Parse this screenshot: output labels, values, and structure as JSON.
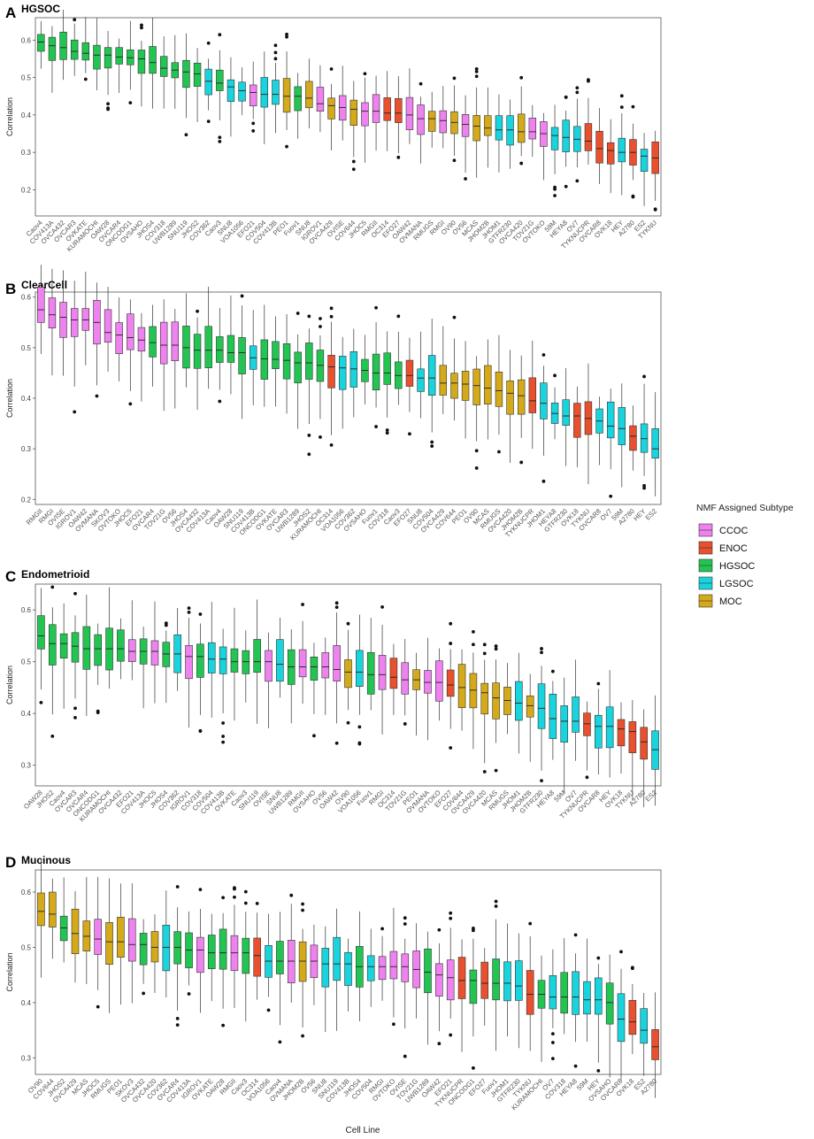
{
  "figure": {
    "x_axis_title": "Cell Line",
    "legend": {
      "title": "NMF Assigned Subtype",
      "items": [
        {
          "label": "CCOC",
          "color": "#EE82EE"
        },
        {
          "label": "ENOC",
          "color": "#E8502E"
        },
        {
          "label": "HGSOC",
          "color": "#23C552"
        },
        {
          "label": "LGSOC",
          "color": "#19D3DD"
        },
        {
          "label": "MOC",
          "color": "#D4AA1A"
        }
      ]
    }
  },
  "chart_data": [
    {
      "type": "boxplot",
      "panel_letter": "A",
      "title": "HGSOC",
      "ylabel": "Correlation",
      "ylim": [
        0.13,
        0.66
      ],
      "yticks": [
        0.2,
        0.3,
        0.4,
        0.5,
        0.6
      ],
      "categories": [
        "Caov4",
        "COV413A",
        "OVCA432",
        "OVCAR3",
        "OVKATE",
        "KURAMOCHI",
        "OAW28",
        "OVCAR4",
        "ONCODG1",
        "OVSAHO",
        "JHOS4",
        "COV318",
        "UWB1289",
        "SNU119",
        "JHOS2",
        "COV362",
        "Caov3",
        "SNU8",
        "VOA1056",
        "EFO21",
        "COV504",
        "COV413B",
        "PEO1",
        "Fuov1",
        "SNU8",
        "IGROV1",
        "OVCA429",
        "OVISE",
        "COV644",
        "JHOC5",
        "RMGII",
        "OC314",
        "EFO27",
        "OAW42",
        "OVMANA",
        "RMUGS",
        "RMGI",
        "OV90",
        "OV56",
        "MCAS",
        "JHOM2B",
        "JHOM1",
        "GTFR230",
        "OVCA420",
        "TOV21G",
        "OVTOKO",
        "59M",
        "HEYA8",
        "OV7",
        "TYKNUCPR",
        "OVCAR8",
        "OVK18",
        "HEY",
        "A2780",
        "ES2",
        "TYKNU"
      ],
      "subtypes": [
        "HGSOC",
        "HGSOC",
        "HGSOC",
        "HGSOC",
        "HGSOC",
        "HGSOC",
        "HGSOC",
        "HGSOC",
        "HGSOC",
        "HGSOC",
        "HGSOC",
        "HGSOC",
        "HGSOC",
        "HGSOC",
        "HGSOC",
        "LGSOC",
        "HGSOC",
        "LGSOC",
        "LGSOC",
        "CCOC",
        "LGSOC",
        "LGSOC",
        "MOC",
        "HGSOC",
        "MOC",
        "CCOC",
        "MOC",
        "CCOC",
        "MOC",
        "CCOC",
        "CCOC",
        "ENOC",
        "ENOC",
        "CCOC",
        "CCOC",
        "MOC",
        "CCOC",
        "MOC",
        "CCOC",
        "MOC",
        "MOC",
        "LGSOC",
        "LGSOC",
        "MOC",
        "CCOC",
        "CCOC",
        "LGSOC",
        "LGSOC",
        "LGSOC",
        "ENOC",
        "ENOC",
        "ENOC",
        "LGSOC",
        "ENOC",
        "LGSOC",
        "ENOC"
      ],
      "medians": [
        0.595,
        0.585,
        0.58,
        0.57,
        0.565,
        0.56,
        0.56,
        0.555,
        0.553,
        0.55,
        0.54,
        0.525,
        0.52,
        0.515,
        0.51,
        0.49,
        0.485,
        0.475,
        0.465,
        0.46,
        0.455,
        0.455,
        0.45,
        0.45,
        0.445,
        0.43,
        0.425,
        0.42,
        0.415,
        0.41,
        0.41,
        0.405,
        0.405,
        0.4,
        0.39,
        0.39,
        0.385,
        0.38,
        0.375,
        0.37,
        0.365,
        0.36,
        0.36,
        0.355,
        0.355,
        0.35,
        0.345,
        0.34,
        0.335,
        0.33,
        0.31,
        0.305,
        0.3,
        0.3,
        0.29,
        0.285
      ]
    },
    {
      "type": "boxplot",
      "panel_letter": "B",
      "title": "ClearCell",
      "ylabel": "Correlation",
      "ylim": [
        0.19,
        0.61
      ],
      "yticks": [
        0.2,
        0.3,
        0.4,
        0.5,
        0.6
      ],
      "categories": [
        "RMGII",
        "RMGI",
        "OVISE",
        "IGROV1",
        "OAW42",
        "OVMANA",
        "SKOV3",
        "OVTOKO",
        "JHOC5",
        "EFO21",
        "OVCAR4",
        "TOV21G",
        "OV56",
        "JHOS4",
        "OVCA432",
        "COV413A",
        "Caov4",
        "OAW28",
        "SNU119",
        "COV413B",
        "ONCODG1",
        "OVKATE",
        "OVCAR3",
        "UWB1289",
        "JHOS2",
        "KURAMOCHI",
        "OC314",
        "VOA1056",
        "COV362",
        "OVSAHO",
        "Fuov1",
        "COV318",
        "Caov3",
        "EFO27",
        "SNU8",
        "COV504",
        "OVCA429",
        "COV644",
        "PEO1",
        "OV90",
        "MCAS",
        "RMUGS",
        "OVCA420",
        "JHOM2B",
        "TYKNUCPR",
        "JHOM1",
        "HEYA8",
        "GTFR230",
        "OVK18",
        "TYKNU",
        "OVCAR8",
        "OV7",
        "59M",
        "A2780",
        "HEY",
        "ES2"
      ],
      "subtypes": [
        "CCOC",
        "CCOC",
        "CCOC",
        "CCOC",
        "CCOC",
        "CCOC",
        "CCOC",
        "CCOC",
        "CCOC",
        "CCOC",
        "HGSOC",
        "CCOC",
        "CCOC",
        "HGSOC",
        "HGSOC",
        "HGSOC",
        "HGSOC",
        "HGSOC",
        "HGSOC",
        "LGSOC",
        "HGSOC",
        "HGSOC",
        "HGSOC",
        "HGSOC",
        "HGSOC",
        "HGSOC",
        "ENOC",
        "LGSOC",
        "LGSOC",
        "HGSOC",
        "HGSOC",
        "HGSOC",
        "HGSOC",
        "ENOC",
        "LGSOC",
        "LGSOC",
        "MOC",
        "MOC",
        "MOC",
        "MOC",
        "MOC",
        "MOC",
        "MOC",
        "MOC",
        "ENOC",
        "LGSOC",
        "LGSOC",
        "LGSOC",
        "ENOC",
        "ENOC",
        "LGSOC",
        "LGSOC",
        "LGSOC",
        "ENOC",
        "LGSOC",
        "LGSOC"
      ],
      "medians": [
        0.575,
        0.565,
        0.56,
        0.555,
        0.555,
        0.55,
        0.53,
        0.525,
        0.52,
        0.515,
        0.51,
        0.505,
        0.505,
        0.5,
        0.495,
        0.495,
        0.495,
        0.49,
        0.49,
        0.48,
        0.478,
        0.477,
        0.475,
        0.47,
        0.47,
        0.465,
        0.462,
        0.46,
        0.458,
        0.455,
        0.45,
        0.45,
        0.445,
        0.445,
        0.44,
        0.44,
        0.43,
        0.43,
        0.428,
        0.425,
        0.42,
        0.415,
        0.41,
        0.405,
        0.395,
        0.39,
        0.37,
        0.365,
        0.365,
        0.36,
        0.355,
        0.345,
        0.34,
        0.325,
        0.32,
        0.3
      ]
    },
    {
      "type": "boxplot",
      "panel_letter": "C",
      "title": "Endometrioid",
      "ylabel": "Correlation",
      "ylim": [
        0.26,
        0.65
      ],
      "yticks": [
        0.3,
        0.4,
        0.5,
        0.6
      ],
      "categories": [
        "OAW28",
        "JHOS2",
        "Caov4",
        "OVCAR3",
        "OVCAR4",
        "ONCODG1",
        "KURAMOCHI",
        "OVCA432",
        "EFO21",
        "COV413A",
        "JHOC5",
        "JHOS4",
        "COV362",
        "IGROV1",
        "COV318",
        "COV504",
        "COV413B",
        "OVKATE",
        "Caov3",
        "SNU119",
        "OVISE",
        "SNU8",
        "UWB1289",
        "RMGII",
        "OVSAHO",
        "OV56",
        "OAW42",
        "OV90",
        "VOA1056",
        "Fuov1",
        "RMGI",
        "OC314",
        "TOV21G",
        "PEO1",
        "OVMANA",
        "OVTOKO",
        "EFO27",
        "COV644",
        "OVCA429",
        "OVCA420",
        "MCAS",
        "RMUGS",
        "JHOM1",
        "JHOM2B",
        "GTFR230",
        "HEYA8",
        "59M",
        "OV7",
        "TYKNUCPR",
        "OVCAR8",
        "HEY",
        "OVK18",
        "TYKNU",
        "A2780",
        "ES2"
      ],
      "subtypes": [
        "HGSOC",
        "HGSOC",
        "HGSOC",
        "HGSOC",
        "HGSOC",
        "HGSOC",
        "HGSOC",
        "HGSOC",
        "CCOC",
        "HGSOC",
        "CCOC",
        "HGSOC",
        "LGSOC",
        "CCOC",
        "HGSOC",
        "LGSOC",
        "LGSOC",
        "HGSOC",
        "HGSOC",
        "HGSOC",
        "CCOC",
        "LGSOC",
        "HGSOC",
        "CCOC",
        "HGSOC",
        "CCOC",
        "CCOC",
        "MOC",
        "LGSOC",
        "HGSOC",
        "CCOC",
        "ENOC",
        "CCOC",
        "MOC",
        "CCOC",
        "CCOC",
        "ENOC",
        "MOC",
        "MOC",
        "MOC",
        "MOC",
        "MOC",
        "LGSOC",
        "MOC",
        "LGSOC",
        "LGSOC",
        "LGSOC",
        "LGSOC",
        "ENOC",
        "LGSOC",
        "LGSOC",
        "ENOC",
        "ENOC",
        "ENOC",
        "LGSOC"
      ],
      "medians": [
        0.55,
        0.535,
        0.535,
        0.53,
        0.525,
        0.525,
        0.525,
        0.525,
        0.52,
        0.52,
        0.52,
        0.515,
        0.515,
        0.51,
        0.51,
        0.505,
        0.505,
        0.5,
        0.5,
        0.5,
        0.5,
        0.495,
        0.49,
        0.49,
        0.49,
        0.49,
        0.485,
        0.48,
        0.48,
        0.475,
        0.475,
        0.47,
        0.465,
        0.465,
        0.46,
        0.46,
        0.455,
        0.45,
        0.445,
        0.44,
        0.43,
        0.425,
        0.42,
        0.415,
        0.41,
        0.39,
        0.385,
        0.385,
        0.38,
        0.375,
        0.375,
        0.37,
        0.365,
        0.345,
        0.33
      ]
    },
    {
      "type": "boxplot",
      "panel_letter": "D",
      "title": "Mucinous",
      "ylabel": "Correlation",
      "ylim": [
        0.27,
        0.64
      ],
      "yticks": [
        0.3,
        0.4,
        0.5,
        0.6
      ],
      "categories": [
        "OV90",
        "COV644",
        "JHOS2",
        "OVCA429",
        "MCAS",
        "JHOC5",
        "RMUGS",
        "PEO1",
        "SKOV3",
        "OVCA432",
        "OVCA420",
        "COV362",
        "OVCAR4",
        "COV413A",
        "IGROV1",
        "OVKATE",
        "OAW28",
        "RMGII",
        "Caov3",
        "OC314",
        "VOA1056",
        "Caov4",
        "OVMANA",
        "JHOM2B",
        "OV56",
        "SNU8",
        "SNU119",
        "COV413B",
        "JHOS4",
        "COV504",
        "RMGI",
        "OVTOKO",
        "OVISE",
        "TOV21G",
        "UWB1289",
        "OAW42",
        "EFO21",
        "TYKNUCPR",
        "ONCODG1",
        "EFO27",
        "Fuov1",
        "JHOM1",
        "GTFR230",
        "TYKNU",
        "KURAMOCHI",
        "OV7",
        "COV318",
        "HEYA8",
        "59M",
        "HEY",
        "OVSAHO",
        "OVCAR8",
        "OVK18",
        "ES2",
        "A2780"
      ],
      "subtypes": [
        "MOC",
        "MOC",
        "HGSOC",
        "MOC",
        "MOC",
        "CCOC",
        "MOC",
        "MOC",
        "CCOC",
        "HGSOC",
        "MOC",
        "LGSOC",
        "HGSOC",
        "HGSOC",
        "CCOC",
        "HGSOC",
        "HGSOC",
        "CCOC",
        "HGSOC",
        "ENOC",
        "LGSOC",
        "HGSOC",
        "CCOC",
        "MOC",
        "CCOC",
        "LGSOC",
        "LGSOC",
        "LGSOC",
        "HGSOC",
        "LGSOC",
        "CCOC",
        "CCOC",
        "CCOC",
        "CCOC",
        "HGSOC",
        "CCOC",
        "CCOC",
        "ENOC",
        "HGSOC",
        "ENOC",
        "HGSOC",
        "LGSOC",
        "LGSOC",
        "ENOC",
        "HGSOC",
        "LGSOC",
        "HGSOC",
        "LGSOC",
        "LGSOC",
        "LGSOC",
        "HGSOC",
        "LGSOC",
        "ENOC",
        "LGSOC",
        "ENOC"
      ],
      "medians": [
        0.565,
        0.56,
        0.535,
        0.525,
        0.52,
        0.515,
        0.51,
        0.51,
        0.505,
        0.505,
        0.5,
        0.5,
        0.5,
        0.495,
        0.495,
        0.49,
        0.49,
        0.49,
        0.49,
        0.485,
        0.475,
        0.475,
        0.475,
        0.475,
        0.475,
        0.47,
        0.47,
        0.47,
        0.465,
        0.465,
        0.465,
        0.465,
        0.465,
        0.46,
        0.455,
        0.45,
        0.445,
        0.44,
        0.44,
        0.435,
        0.435,
        0.435,
        0.43,
        0.415,
        0.415,
        0.41,
        0.41,
        0.41,
        0.405,
        0.405,
        0.4,
        0.37,
        0.365,
        0.35,
        0.32
      ]
    }
  ]
}
